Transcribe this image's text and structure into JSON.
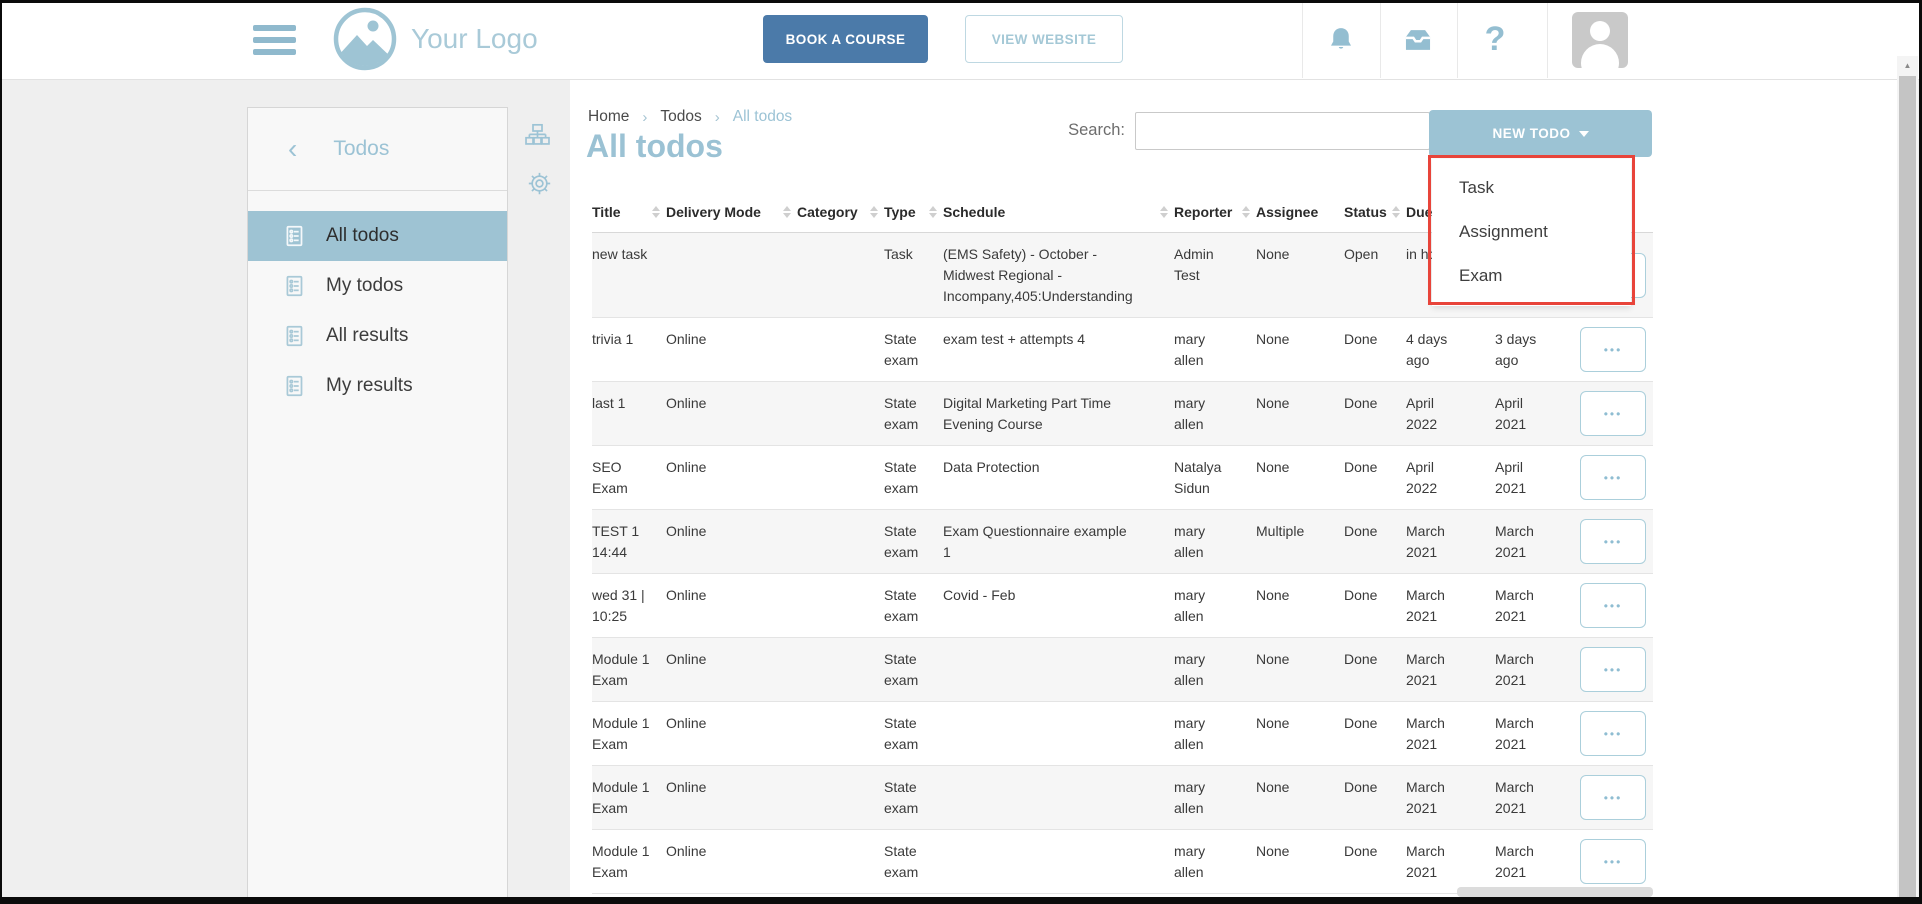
{
  "colors": {
    "accent_blue": "#9CC3D4",
    "dark_blue_button": "#4B7AA9",
    "header_icon_blue": "#94BED1",
    "active_item_bg": "#9EC3D3",
    "annotation_red": "#E8443A"
  },
  "header": {
    "logo_text": "Your Logo",
    "book_course_label": "BOOK A COURSE",
    "view_website_label": "VIEW WEBSITE",
    "help_glyph": "?"
  },
  "sidebar": {
    "back_icon": "‹",
    "title": "Todos",
    "items": [
      {
        "label": "All todos",
        "active": true
      },
      {
        "label": "My todos",
        "active": false
      },
      {
        "label": "All results",
        "active": false
      },
      {
        "label": "My results",
        "active": false
      }
    ]
  },
  "breadcrumb": {
    "separator": "›",
    "items": [
      "Home",
      "Todos",
      "All todos"
    ]
  },
  "page": {
    "title": "All todos"
  },
  "toolbar": {
    "search_label": "Search:",
    "search_value": "",
    "new_todo_label": "NEW TODO",
    "menu_items": [
      "Task",
      "Assignment",
      "Exam"
    ]
  },
  "table": {
    "actions_icon": "•••",
    "columns": [
      {
        "label": "Title",
        "sortable": true
      },
      {
        "label": "Delivery Mode",
        "sortable": true
      },
      {
        "label": "Category",
        "sortable": true
      },
      {
        "label": "Type",
        "sortable": true
      },
      {
        "label": "Schedule",
        "sortable": true
      },
      {
        "label": "Reporter",
        "sortable": true
      },
      {
        "label": "Assignee",
        "sortable": false
      },
      {
        "label": "Status",
        "sortable": true
      },
      {
        "label": "Due date",
        "sortable": true
      },
      {
        "label": "",
        "sortable": false
      },
      {
        "label": "",
        "sortable": false
      }
    ],
    "rows": [
      {
        "title": "new task",
        "delivery_mode": "",
        "category": "",
        "type": "Task",
        "schedule": "(EMS Safety) - October - Midwest Regional - Incompany,405:Understanding",
        "reporter": "Admin Test",
        "assignee": "None",
        "status": "Open",
        "due": "in hours",
        "date2": ""
      },
      {
        "title": "trivia 1",
        "delivery_mode": "Online",
        "category": "",
        "type": "State exam",
        "schedule": "exam test + attempts 4",
        "reporter": "mary allen",
        "assignee": "None",
        "status": "Done",
        "due": "4 days ago",
        "date2": "3 days ago"
      },
      {
        "title": "last 1",
        "delivery_mode": "Online",
        "category": "",
        "type": "State exam",
        "schedule": "Digital Marketing Part Time Evening Course",
        "reporter": "mary allen",
        "assignee": "None",
        "status": "Done",
        "due": "April 2022",
        "date2": "April 2021"
      },
      {
        "title": "SEO Exam",
        "delivery_mode": "Online",
        "category": "",
        "type": "State exam",
        "schedule": "Data Protection",
        "reporter": "Natalya Sidun",
        "assignee": "None",
        "status": "Done",
        "due": "April 2022",
        "date2": "April 2021"
      },
      {
        "title": "TEST 1 14:44",
        "delivery_mode": "Online",
        "category": "",
        "type": "State exam",
        "schedule": "Exam Questionnaire example 1",
        "reporter": "mary allen",
        "assignee": "Multiple",
        "status": "Done",
        "due": "March 2021",
        "date2": "March 2021"
      },
      {
        "title": "wed 31 | 10:25",
        "delivery_mode": "Online",
        "category": "",
        "type": "State exam",
        "schedule": "Covid - Feb",
        "reporter": "mary allen",
        "assignee": "None",
        "status": "Done",
        "due": "March 2021",
        "date2": "March 2021"
      },
      {
        "title": "Module 1 Exam",
        "delivery_mode": "Online",
        "category": "",
        "type": "State exam",
        "schedule": "",
        "reporter": "mary allen",
        "assignee": "None",
        "status": "Done",
        "due": "March 2021",
        "date2": "March 2021"
      },
      {
        "title": "Module 1 Exam",
        "delivery_mode": "Online",
        "category": "",
        "type": "State exam",
        "schedule": "",
        "reporter": "mary allen",
        "assignee": "None",
        "status": "Done",
        "due": "March 2021",
        "date2": "March 2021"
      },
      {
        "title": "Module 1 Exam",
        "delivery_mode": "Online",
        "category": "",
        "type": "State exam",
        "schedule": "",
        "reporter": "mary allen",
        "assignee": "None",
        "status": "Done",
        "due": "March 2021",
        "date2": "March 2021"
      },
      {
        "title": "Module 1 Exam",
        "delivery_mode": "Online",
        "category": "",
        "type": "State exam",
        "schedule": "",
        "reporter": "mary allen",
        "assignee": "None",
        "status": "Done",
        "due": "March 2021",
        "date2": "March 2021"
      }
    ]
  },
  "scrollbar": {
    "up_glyph": "▲"
  }
}
